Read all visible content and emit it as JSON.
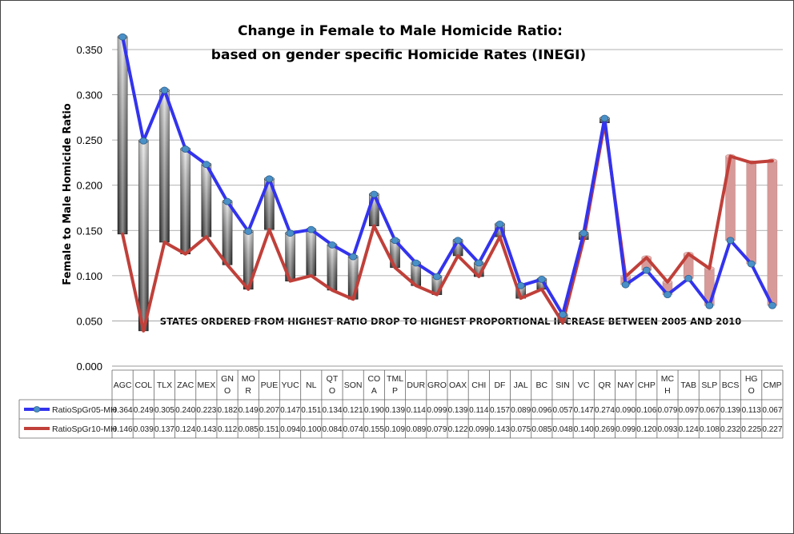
{
  "chart_data": {
    "type": "line",
    "title": "Change in Female to Male Homicide Ratio:",
    "subtitle": "based on gender specific Homicide Rates (INEGI)",
    "ylabel": "Female to Male Homicide Ratio",
    "xlabel": "",
    "annotation": "STATES ORDERED FROM HIGHEST RATIO DROP TO HIGHEST PROPORTIONAL INCREASE BETWEEN 2005 AND 2010",
    "ylim": [
      0,
      0.35
    ],
    "yticks": [
      "0.000",
      "0.050",
      "0.100",
      "0.150",
      "0.200",
      "0.250",
      "0.300",
      "0.350"
    ],
    "grid": true,
    "legend_placement": "data table rows below chart",
    "categories": [
      "AGC",
      "COL",
      "TLX",
      "ZAC",
      "MEX",
      "GNO",
      "MOR",
      "PUE",
      "YUC",
      "NL",
      "QTO",
      "SON",
      "COA",
      "TMLP",
      "DUR",
      "GRO",
      "OAX",
      "CHI",
      "DF",
      "JAL",
      "BC",
      "SIN",
      "VC",
      "QR",
      "NAY",
      "CHP",
      "MCH",
      "TAB",
      "SLP",
      "BCS",
      "HGO",
      "CMP"
    ],
    "category_display": [
      [
        "AGC"
      ],
      [
        "COL"
      ],
      [
        "TLX"
      ],
      [
        "ZAC"
      ],
      [
        "MEX"
      ],
      [
        "GN",
        "O"
      ],
      [
        "MO",
        "R"
      ],
      [
        "PUE"
      ],
      [
        "YUC"
      ],
      [
        "NL"
      ],
      [
        "QT",
        "O"
      ],
      [
        "SON"
      ],
      [
        "CO",
        "A"
      ],
      [
        "TML",
        "P"
      ],
      [
        "DUR"
      ],
      [
        "GRO"
      ],
      [
        "OAX"
      ],
      [
        "CHI"
      ],
      [
        "DF"
      ],
      [
        "JAL"
      ],
      [
        "BC"
      ],
      [
        "SIN"
      ],
      [
        "VC"
      ],
      [
        "QR"
      ],
      [
        "NAY"
      ],
      [
        "CHP"
      ],
      [
        "MC",
        "H"
      ],
      [
        "TAB"
      ],
      [
        "SLP"
      ],
      [
        "BCS"
      ],
      [
        "HG",
        "O"
      ],
      [
        "CMP"
      ]
    ],
    "series": [
      {
        "name": "RatioSpGr05-MH",
        "color": "#3333ee",
        "values": [
          0.364,
          0.249,
          0.305,
          0.24,
          0.223,
          0.182,
          0.149,
          0.207,
          0.147,
          0.151,
          0.134,
          0.121,
          0.19,
          0.139,
          0.114,
          0.099,
          0.139,
          0.114,
          0.157,
          0.089,
          0.096,
          0.057,
          0.147,
          0.274,
          0.09,
          0.106,
          0.079,
          0.097,
          0.067,
          0.139,
          0.113,
          0.067
        ],
        "labels": [
          "0.364",
          "0.249",
          "0.305",
          "0.240",
          "0.223",
          "0.182",
          "0.149",
          "0.207",
          "0.147",
          "0.151",
          "0.134",
          "0.121",
          "0.190",
          "0.139",
          "0.114",
          "0.099",
          "0.139",
          "0.114",
          "0.157",
          "0.089",
          "0.096",
          "0.057",
          "0.147",
          "0.274",
          "0.090",
          "0.106",
          "0.079",
          "0.097",
          "0.067",
          "0.139",
          "0.113",
          "0.067"
        ]
      },
      {
        "name": "RatioSpGr10-MH",
        "color": "#c0403a",
        "values": [
          0.146,
          0.039,
          0.137,
          0.124,
          0.143,
          0.112,
          0.085,
          0.151,
          0.094,
          0.1,
          0.084,
          0.074,
          0.155,
          0.109,
          0.089,
          0.079,
          0.122,
          0.099,
          0.143,
          0.075,
          0.085,
          0.048,
          0.14,
          0.269,
          0.099,
          0.12,
          0.093,
          0.124,
          0.108,
          0.232,
          0.225,
          0.227
        ],
        "labels": [
          "0.146",
          "0.039",
          "0.137",
          "0.124",
          "0.143",
          "0.112",
          "0.085",
          "0.151",
          "0.094",
          "0.100",
          "0.084",
          "0.074",
          "0.155",
          "0.109",
          "0.089",
          "0.079",
          "0.122",
          "0.099",
          "0.143",
          "0.075",
          "0.085",
          "0.048",
          "0.140",
          "0.269",
          "0.099",
          "0.120",
          "0.093",
          "0.124",
          "0.108",
          "0.232",
          "0.225",
          "0.227"
        ]
      }
    ],
    "colors": {
      "drop_bar": "#777777",
      "increase_bar": "#d89a98",
      "grid": "#999999",
      "marker": "#4a90c8"
    }
  }
}
